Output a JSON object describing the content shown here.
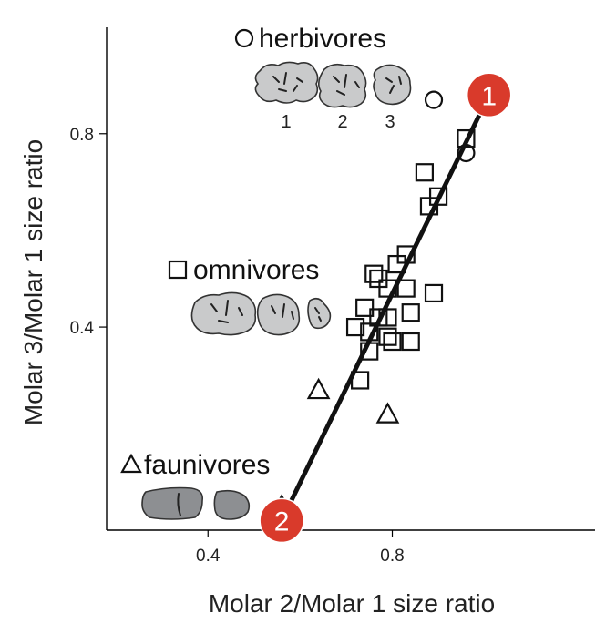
{
  "chart_data": {
    "type": "scatter",
    "xlabel": "Molar 2/Molar 1 size ratio",
    "ylabel": "Molar 3/Molar 1 size ratio",
    "xlim": [
      0.18,
      1.24
    ],
    "ylim": [
      -0.02,
      1.02
    ],
    "xticks": [
      0.4,
      0.8
    ],
    "yticks": [
      0.4,
      0.8
    ],
    "series": [
      {
        "name": "herbivores",
        "marker": "circle",
        "points": [
          [
            0.89,
            0.87
          ],
          [
            0.96,
            0.76
          ]
        ]
      },
      {
        "name": "omnivores",
        "marker": "square",
        "points": [
          [
            0.96,
            0.79
          ],
          [
            0.87,
            0.72
          ],
          [
            0.9,
            0.67
          ],
          [
            0.88,
            0.65
          ],
          [
            0.83,
            0.55
          ],
          [
            0.81,
            0.53
          ],
          [
            0.76,
            0.51
          ],
          [
            0.77,
            0.5
          ],
          [
            0.79,
            0.48
          ],
          [
            0.83,
            0.48
          ],
          [
            0.89,
            0.47
          ],
          [
            0.74,
            0.44
          ],
          [
            0.84,
            0.43
          ],
          [
            0.77,
            0.42
          ],
          [
            0.79,
            0.42
          ],
          [
            0.72,
            0.4
          ],
          [
            0.75,
            0.39
          ],
          [
            0.79,
            0.38
          ],
          [
            0.8,
            0.37
          ],
          [
            0.84,
            0.37
          ],
          [
            0.75,
            0.35
          ],
          [
            0.73,
            0.29
          ]
        ]
      },
      {
        "name": "faunivores",
        "marker": "triangle",
        "points": [
          [
            0.64,
            0.27
          ],
          [
            0.79,
            0.22
          ],
          [
            0.56,
            0.03
          ]
        ]
      }
    ],
    "trend_line": {
      "from": [
        0.56,
        0.0
      ],
      "to": [
        1.01,
        0.88
      ],
      "labels": [
        "2",
        "1"
      ]
    },
    "tooth_numbers": [
      "1",
      "2",
      "3"
    ],
    "legend": "inside, stacked along left side with tooth icons"
  }
}
